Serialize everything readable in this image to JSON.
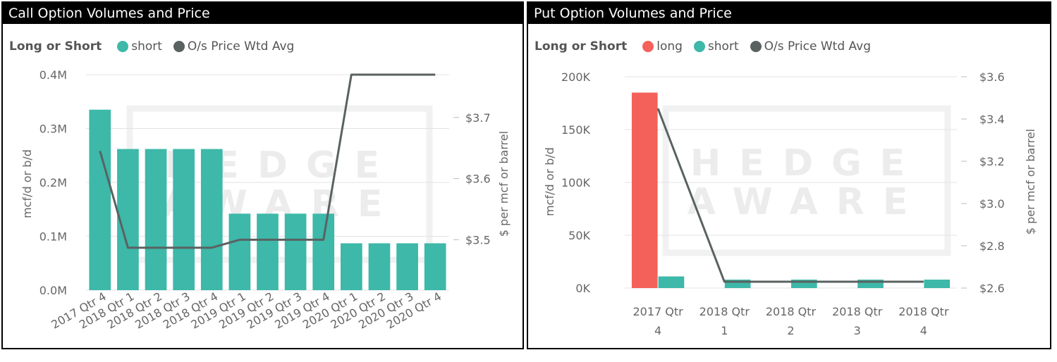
{
  "panels": [
    {
      "title": "Call Option Volumes and Price",
      "legend": {
        "title": "Long or Short",
        "items": [
          {
            "label": "short",
            "color": "#3DB8A9"
          },
          {
            "label": "O/s Price Wtd Avg",
            "color": "#5A6261"
          }
        ]
      },
      "watermark": [
        "HEDGE",
        "AWARE"
      ]
    },
    {
      "title": "Put Option Volumes and Price",
      "legend": {
        "title": "Long or Short",
        "items": [
          {
            "label": "long",
            "color": "#F4605A"
          },
          {
            "label": "short",
            "color": "#3DB8A9"
          },
          {
            "label": "O/s Price Wtd Avg",
            "color": "#5A6261"
          }
        ]
      },
      "watermark": [
        "HEDGE",
        "AWARE"
      ]
    }
  ],
  "chart_data": [
    {
      "type": "bar",
      "title": "Call Option Volumes and Price",
      "categories": [
        "2017 Qtr 4",
        "2018 Qtr 1",
        "2018 Qtr 2",
        "2018 Qtr 3",
        "2018 Qtr 4",
        "2019 Qtr 1",
        "2019 Qtr 2",
        "2019 Qtr 3",
        "2019 Qtr 4",
        "2020 Qtr 1",
        "2020 Qtr 2",
        "2020 Qtr 3",
        "2020 Qtr 4"
      ],
      "series": [
        {
          "name": "short",
          "kind": "bar",
          "color": "#3DB8A9",
          "values": [
            335000,
            262000,
            262000,
            262000,
            262000,
            142000,
            142000,
            142000,
            142000,
            87000,
            87000,
            87000,
            87000
          ]
        }
      ],
      "line": {
        "name": "O/s Price Wtd Avg",
        "color": "#5A6261",
        "values": [
          3.645,
          3.487,
          3.487,
          3.487,
          3.487,
          3.5,
          3.5,
          3.5,
          3.5,
          3.77,
          3.77,
          3.77,
          3.77
        ]
      },
      "ylabel": "mcf/d or b/d",
      "y2label": "$ per mcf or barrel",
      "ylim": [
        0,
        400000
      ],
      "y2lim": [
        3.4175,
        3.77
      ],
      "yticks": [
        {
          "v": 0,
          "label": "0.0M"
        },
        {
          "v": 100000,
          "label": "0.1M"
        },
        {
          "v": 200000,
          "label": "0.2M"
        },
        {
          "v": 300000,
          "label": "0.3M"
        },
        {
          "v": 400000,
          "label": "0.4M"
        }
      ],
      "y2ticks": [
        {
          "v": 3.5,
          "label": "$3.5"
        },
        {
          "v": 3.6,
          "label": "$3.6"
        },
        {
          "v": 3.7,
          "label": "$3.7"
        }
      ],
      "grid": true,
      "legend_position": "top-left"
    },
    {
      "type": "bar",
      "title": "Put Option Volumes and Price",
      "categories": [
        [
          "2017 Qtr",
          "4"
        ],
        [
          "2018 Qtr",
          "1"
        ],
        [
          "2018 Qtr",
          "2"
        ],
        [
          "2018 Qtr",
          "3"
        ],
        [
          "2018 Qtr",
          "4"
        ]
      ],
      "series": [
        {
          "name": "long",
          "kind": "bar",
          "color": "#F4605A",
          "values": [
            185000,
            0,
            0,
            0,
            0
          ]
        },
        {
          "name": "short",
          "kind": "bar",
          "color": "#3DB8A9",
          "values": [
            11000,
            8000,
            8000,
            8000,
            8000
          ]
        }
      ],
      "line": {
        "name": "O/s Price Wtd Avg",
        "color": "#5A6261",
        "values": [
          3.45,
          2.63,
          2.63,
          2.63,
          2.63
        ]
      },
      "ylabel": "mcf/d or b/d",
      "y2label": "$ per mcf or barrel",
      "ylim": [
        0,
        200000
      ],
      "y2lim": [
        2.6,
        3.6
      ],
      "yticks": [
        {
          "v": 0,
          "label": "0K"
        },
        {
          "v": 50000,
          "label": "50K"
        },
        {
          "v": 100000,
          "label": "100K"
        },
        {
          "v": 150000,
          "label": "150K"
        },
        {
          "v": 200000,
          "label": "200K"
        }
      ],
      "y2ticks": [
        {
          "v": 2.6,
          "label": "$2.6"
        },
        {
          "v": 2.8,
          "label": "$2.8"
        },
        {
          "v": 3.0,
          "label": "$3.0"
        },
        {
          "v": 3.2,
          "label": "$3.2"
        },
        {
          "v": 3.4,
          "label": "$3.4"
        },
        {
          "v": 3.6,
          "label": "$3.6"
        }
      ],
      "grid": true,
      "legend_position": "top-left"
    }
  ]
}
